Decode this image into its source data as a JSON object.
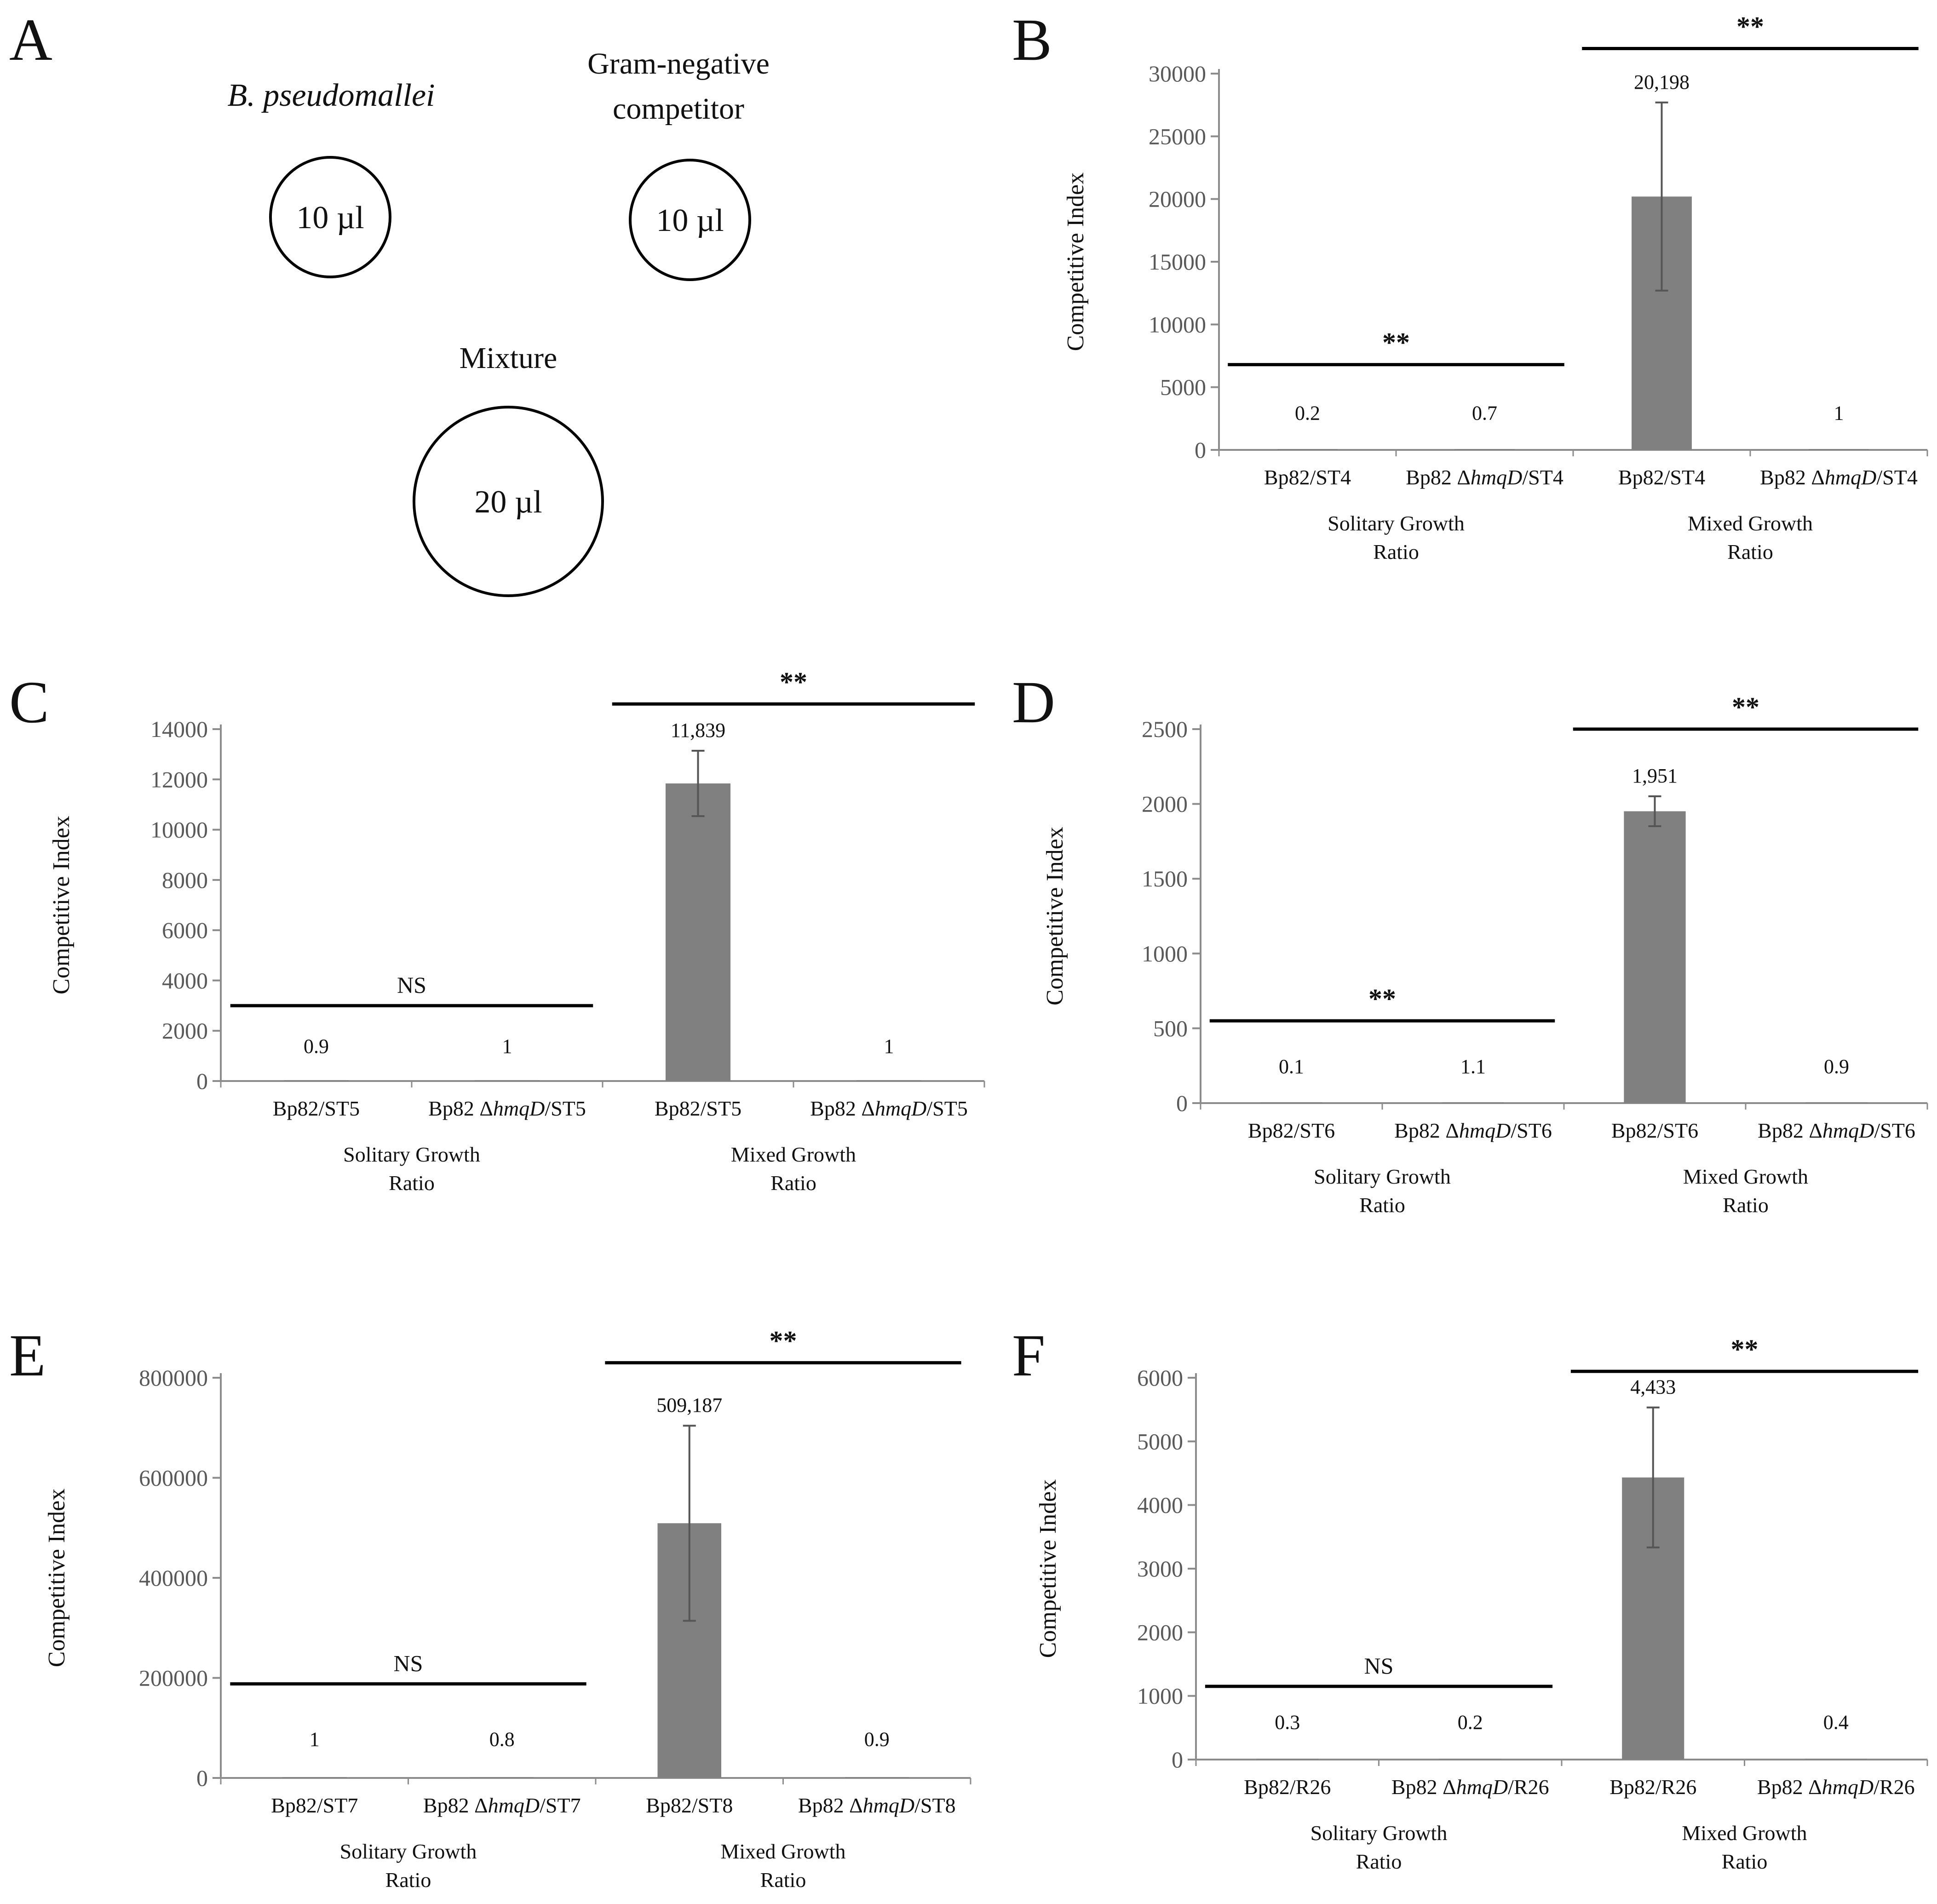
{
  "colors": {
    "bar": "#808080",
    "axis": "#8c8c8c",
    "errorbar": "#555555",
    "sigline": "#000000"
  },
  "panel_a": {
    "letter": "A",
    "left_label": "B. pseudomallei",
    "right_label_line1": "Gram-negative",
    "right_label_line2": "competitor",
    "left_volume": "10 µl",
    "right_volume": "10 µl",
    "mixture_label": "Mixture",
    "mixture_volume": "20 µl"
  },
  "chart_data": [
    {
      "id": "B",
      "type": "bar",
      "ylabel": "Competitive Index",
      "ylim": [
        0,
        30000
      ],
      "yticks": [
        0,
        5000,
        10000,
        15000,
        20000,
        25000,
        30000
      ],
      "categories": [
        {
          "prefix": "Bp82/ST4",
          "mut": "",
          "suffix": ""
        },
        {
          "prefix": "Bp82 Δ",
          "mut": "hmqD",
          "suffix": "/ST4"
        },
        {
          "prefix": "Bp82/ST4",
          "mut": "",
          "suffix": ""
        },
        {
          "prefix": "Bp82 Δ",
          "mut": "hmqD",
          "suffix": "/ST4"
        }
      ],
      "values": [
        0.2,
        0.7,
        20198,
        1
      ],
      "errors": [
        0,
        0,
        7500,
        0
      ],
      "value_labels": [
        "0.2",
        "0.7",
        "20,198",
        "1"
      ],
      "groups": [
        [
          "Solitary Growth",
          "Ratio"
        ],
        [
          "Mixed Growth",
          "Ratio"
        ]
      ],
      "significance": [
        {
          "pair": [
            0,
            1
          ],
          "label": "**",
          "at": 6800
        },
        {
          "pair": [
            2,
            3
          ],
          "label": "**",
          "at": 32000
        }
      ]
    },
    {
      "id": "C",
      "type": "bar",
      "ylabel": "Competitive Index",
      "ylim": [
        0,
        14000
      ],
      "yticks": [
        0,
        2000,
        4000,
        6000,
        8000,
        10000,
        12000,
        14000
      ],
      "categories": [
        {
          "prefix": "Bp82/ST5",
          "mut": "",
          "suffix": ""
        },
        {
          "prefix": "Bp82 Δ",
          "mut": "hmqD",
          "suffix": "/ST5"
        },
        {
          "prefix": "Bp82/ST5",
          "mut": "",
          "suffix": ""
        },
        {
          "prefix": "Bp82 Δ",
          "mut": "hmqD",
          "suffix": "/ST5"
        }
      ],
      "values": [
        0.9,
        1,
        11839,
        1
      ],
      "errors": [
        0,
        0,
        1300,
        0
      ],
      "value_labels": [
        "0.9",
        "1",
        "11,839",
        "1"
      ],
      "groups": [
        [
          "Solitary Growth",
          "Ratio"
        ],
        [
          "Mixed Growth",
          "Ratio"
        ]
      ],
      "significance": [
        {
          "pair": [
            0,
            1
          ],
          "label": "NS",
          "at": 3000
        },
        {
          "pair": [
            2,
            3
          ],
          "label": "**",
          "at": 15000
        }
      ]
    },
    {
      "id": "D",
      "type": "bar",
      "ylabel": "Competitive Index",
      "ylim": [
        0,
        2500
      ],
      "yticks": [
        0,
        500,
        1000,
        1500,
        2000,
        2500
      ],
      "categories": [
        {
          "prefix": "Bp82/ST6",
          "mut": "",
          "suffix": ""
        },
        {
          "prefix": "Bp82 Δ",
          "mut": "hmqD",
          "suffix": "/ST6"
        },
        {
          "prefix": "Bp82/ST6",
          "mut": "",
          "suffix": ""
        },
        {
          "prefix": "Bp82 Δ",
          "mut": "hmqD",
          "suffix": "/ST6"
        }
      ],
      "values": [
        0.1,
        1.1,
        1951,
        0.9
      ],
      "errors": [
        0,
        0,
        100,
        0
      ],
      "value_labels": [
        "0.1",
        "1.1",
        "1,951",
        "0.9"
      ],
      "groups": [
        [
          "Solitary Growth",
          "Ratio"
        ],
        [
          "Mixed Growth",
          "Ratio"
        ]
      ],
      "significance": [
        {
          "pair": [
            0,
            1
          ],
          "label": "**",
          "at": 550
        },
        {
          "pair": [
            2,
            3
          ],
          "label": "**",
          "at": 2500
        }
      ]
    },
    {
      "id": "E",
      "type": "bar",
      "ylabel": "Competitive Index",
      "ylim": [
        0,
        800000
      ],
      "yticks": [
        0,
        200000,
        400000,
        600000,
        800000
      ],
      "categories": [
        {
          "prefix": "Bp82/ST7",
          "mut": "",
          "suffix": ""
        },
        {
          "prefix": "Bp82 Δ",
          "mut": "hmqD",
          "suffix": "/ST7"
        },
        {
          "prefix": "Bp82/ST8",
          "mut": "",
          "suffix": ""
        },
        {
          "prefix": "Bp82 Δ",
          "mut": "hmqD",
          "suffix": "/ST8"
        }
      ],
      "values": [
        1,
        0.8,
        509187,
        0.9
      ],
      "errors": [
        0,
        0,
        195000,
        0
      ],
      "value_labels": [
        "1",
        "0.8",
        "509,187",
        "0.9"
      ],
      "groups": [
        [
          "Solitary Growth",
          "Ratio"
        ],
        [
          "Mixed Growth",
          "Ratio"
        ]
      ],
      "significance": [
        {
          "pair": [
            0,
            1
          ],
          "label": "NS",
          "at": 188000
        },
        {
          "pair": [
            2,
            3
          ],
          "label": "**",
          "at": 830000
        }
      ]
    },
    {
      "id": "F",
      "type": "bar",
      "ylabel": "Competitive Index",
      "ylim": [
        0,
        6000
      ],
      "yticks": [
        0,
        1000,
        2000,
        3000,
        4000,
        5000,
        6000
      ],
      "categories": [
        {
          "prefix": "Bp82/R26",
          "mut": "",
          "suffix": ""
        },
        {
          "prefix": "Bp82 Δ",
          "mut": "hmqD",
          "suffix": "/R26"
        },
        {
          "prefix": "Bp82/R26",
          "mut": "",
          "suffix": ""
        },
        {
          "prefix": "Bp82 Δ",
          "mut": "hmqD",
          "suffix": "/R26"
        }
      ],
      "values": [
        0.3,
        0.2,
        4433,
        0.4
      ],
      "errors": [
        0,
        0,
        1100,
        0
      ],
      "value_labels": [
        "0.3",
        "0.2",
        "4,433",
        "0.4"
      ],
      "groups": [
        [
          "Solitary Growth",
          "Ratio"
        ],
        [
          "Mixed Growth",
          "Ratio"
        ]
      ],
      "significance": [
        {
          "pair": [
            0,
            1
          ],
          "label": "NS",
          "at": 1150
        },
        {
          "pair": [
            2,
            3
          ],
          "label": "**",
          "at": 6100
        }
      ]
    }
  ]
}
